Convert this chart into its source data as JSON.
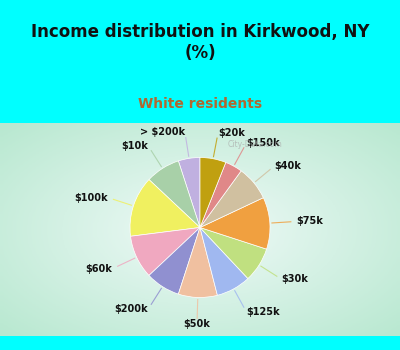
{
  "title": "Income distribution in Kirkwood, NY\n(%)",
  "subtitle": "White residents",
  "title_color": "#111111",
  "subtitle_color": "#b06830",
  "background_cyan": "#00ffff",
  "background_chart_outer": "#b8e8d0",
  "background_chart_inner": "#f0faf8",
  "labels": [
    "> $200k",
    "$10k",
    "$100k",
    "$60k",
    "$200k",
    "$50k",
    "$125k",
    "$30k",
    "$75k",
    "$40k",
    "$150k",
    "$20k"
  ],
  "values": [
    5,
    8,
    14,
    10,
    8,
    9,
    8,
    8,
    12,
    8,
    4,
    6
  ],
  "colors": [
    "#c0b0e0",
    "#a8d0a8",
    "#f0f060",
    "#f0a8c0",
    "#9090d0",
    "#f0c0a0",
    "#a0b8f0",
    "#c0e080",
    "#f0a040",
    "#d0c0a0",
    "#e08888",
    "#c0a010"
  ],
  "label_fontsize": 7.0,
  "title_fontsize": 12,
  "subtitle_fontsize": 10,
  "watermark": "City-Data.com"
}
